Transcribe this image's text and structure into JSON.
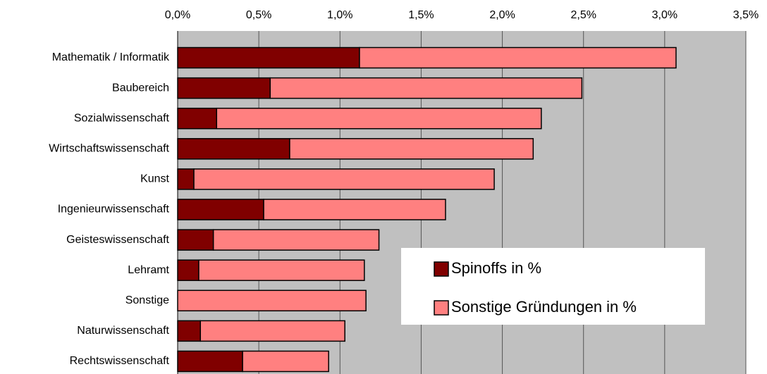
{
  "chart_data": {
    "type": "stacked_barh",
    "categories": [
      "Mathematik / Informatik",
      "Baubereich",
      "Sozialwissenschaft",
      "Wirtschaftswissenschaft",
      "Kunst",
      "Ingenieurwissenschaft",
      "Geisteswissenschaft",
      "Lehramt",
      "Sonstige",
      "Naturwissenschaft",
      "Rechtswissenschaft"
    ],
    "series": [
      {
        "name": "Spinoffs in %",
        "color": "#800000",
        "values": [
          1.12,
          0.57,
          0.24,
          0.69,
          0.1,
          0.53,
          0.22,
          0.13,
          0,
          0.14,
          0.4
        ]
      },
      {
        "name": "Sonstige Gründungen in %",
        "color": "#ff8080",
        "values": [
          1.95,
          1.92,
          2.0,
          1.5,
          1.85,
          1.12,
          1.02,
          1.02,
          1.16,
          0.89,
          0.53
        ]
      }
    ],
    "xlim": [
      0,
      3.5
    ],
    "xticks": [
      {
        "value": 0,
        "label": "0,0%"
      },
      {
        "value": 0.5,
        "label": "0,5%"
      },
      {
        "value": 1,
        "label": "1,0%"
      },
      {
        "value": 1.5,
        "label": "1,5%"
      },
      {
        "value": 2,
        "label": "2,0%"
      },
      {
        "value": 2.5,
        "label": "2,5%"
      },
      {
        "value": 3,
        "label": "3,0%"
      },
      {
        "value": 3.5,
        "label": "3,5%"
      }
    ],
    "grid": true,
    "legend": "lower right",
    "background": "#c0c0c0"
  }
}
